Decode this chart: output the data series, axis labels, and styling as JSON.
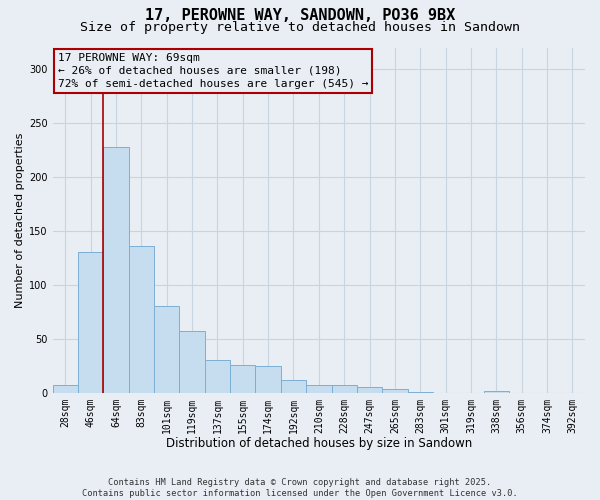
{
  "title_line1": "17, PEROWNE WAY, SANDOWN, PO36 9BX",
  "title_line2": "Size of property relative to detached houses in Sandown",
  "xlabel": "Distribution of detached houses by size in Sandown",
  "ylabel": "Number of detached properties",
  "categories": [
    "28sqm",
    "46sqm",
    "64sqm",
    "83sqm",
    "101sqm",
    "119sqm",
    "137sqm",
    "155sqm",
    "174sqm",
    "192sqm",
    "210sqm",
    "228sqm",
    "247sqm",
    "265sqm",
    "283sqm",
    "301sqm",
    "319sqm",
    "338sqm",
    "356sqm",
    "374sqm",
    "392sqm"
  ],
  "values": [
    7,
    130,
    228,
    136,
    80,
    57,
    30,
    26,
    25,
    12,
    7,
    7,
    5,
    3,
    1,
    0,
    0,
    2,
    0,
    0,
    0
  ],
  "bar_color": "#c5ddef",
  "bar_edgecolor": "#7bafd4",
  "annotation_line1": "17 PEROWNE WAY: 69sqm",
  "annotation_line2": "← 26% of detached houses are smaller (198)",
  "annotation_line3": "72% of semi-detached houses are larger (545) →",
  "annotation_rect_color": "#aa0000",
  "vline_color": "#aa0000",
  "vline_x": 1.5,
  "ylim": [
    0,
    320
  ],
  "yticks": [
    0,
    50,
    100,
    150,
    200,
    250,
    300
  ],
  "grid_color": "#c8d4e0",
  "background_color": "#e8eef4",
  "footer_line1": "Contains HM Land Registry data © Crown copyright and database right 2025.",
  "footer_line2": "Contains public sector information licensed under the Open Government Licence v3.0.",
  "title_fontsize": 11,
  "subtitle_fontsize": 9.5,
  "tick_fontsize": 7,
  "ylabel_fontsize": 8,
  "xlabel_fontsize": 8.5,
  "annotation_fontsize": 8
}
